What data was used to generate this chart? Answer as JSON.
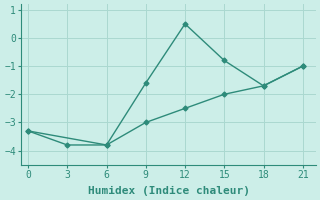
{
  "line1_x": [
    0,
    3,
    6,
    9,
    12,
    15,
    18,
    21
  ],
  "line1_y": [
    -3.3,
    -3.8,
    -3.8,
    -1.6,
    0.5,
    -0.8,
    -1.7,
    -1.0
  ],
  "line2_x": [
    0,
    6,
    9,
    12,
    15,
    18,
    21
  ],
  "line2_y": [
    -3.3,
    -3.8,
    -3.0,
    -2.5,
    -2.0,
    -1.7,
    -1.0
  ],
  "line_color": "#2e8b7a",
  "background_color": "#cceee8",
  "grid_color": "#aad8d0",
  "xlabel": "Humidex (Indice chaleur)",
  "ylim": [
    -4.5,
    1.2
  ],
  "xlim": [
    -0.5,
    22
  ],
  "xticks": [
    0,
    3,
    6,
    9,
    12,
    15,
    18,
    21
  ],
  "yticks": [
    -4,
    -3,
    -2,
    -1,
    0,
    1
  ],
  "marker": "D",
  "markersize": 2.5,
  "linewidth": 1.0,
  "font_family": "monospace",
  "xlabel_fontsize": 8,
  "tick_fontsize": 7
}
